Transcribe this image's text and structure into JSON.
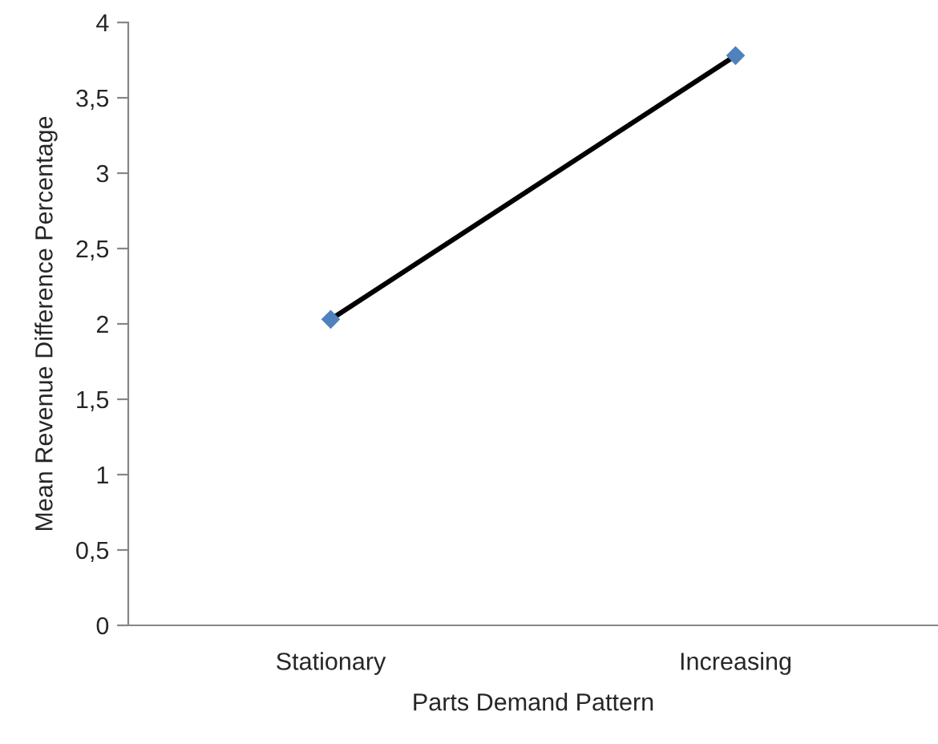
{
  "chart_data": {
    "type": "line",
    "xlabel": "Parts Demand Pattern",
    "ylabel": "Mean Revenue Difference Percentage",
    "categories": [
      "Stationary",
      "Increasing"
    ],
    "series": [
      {
        "color": "#000000",
        "colors": [
          "#4f81bd",
          "#4f81bd"
        ],
        "values": [
          2.03,
          3.78
        ]
      }
    ],
    "ylim": [
      0,
      4
    ],
    "yticks": [
      0,
      {
        "value": 0.5,
        "label": "0,5"
      },
      1,
      {
        "value": 1.5,
        "label": "1,5"
      },
      2,
      {
        "value": 2.5,
        "label": "2,5"
      },
      3,
      {
        "value": 3.5,
        "label": "3,5"
      },
      4
    ],
    "marker": "diamond",
    "line_style": "solid",
    "grid": false,
    "legend": false
  }
}
